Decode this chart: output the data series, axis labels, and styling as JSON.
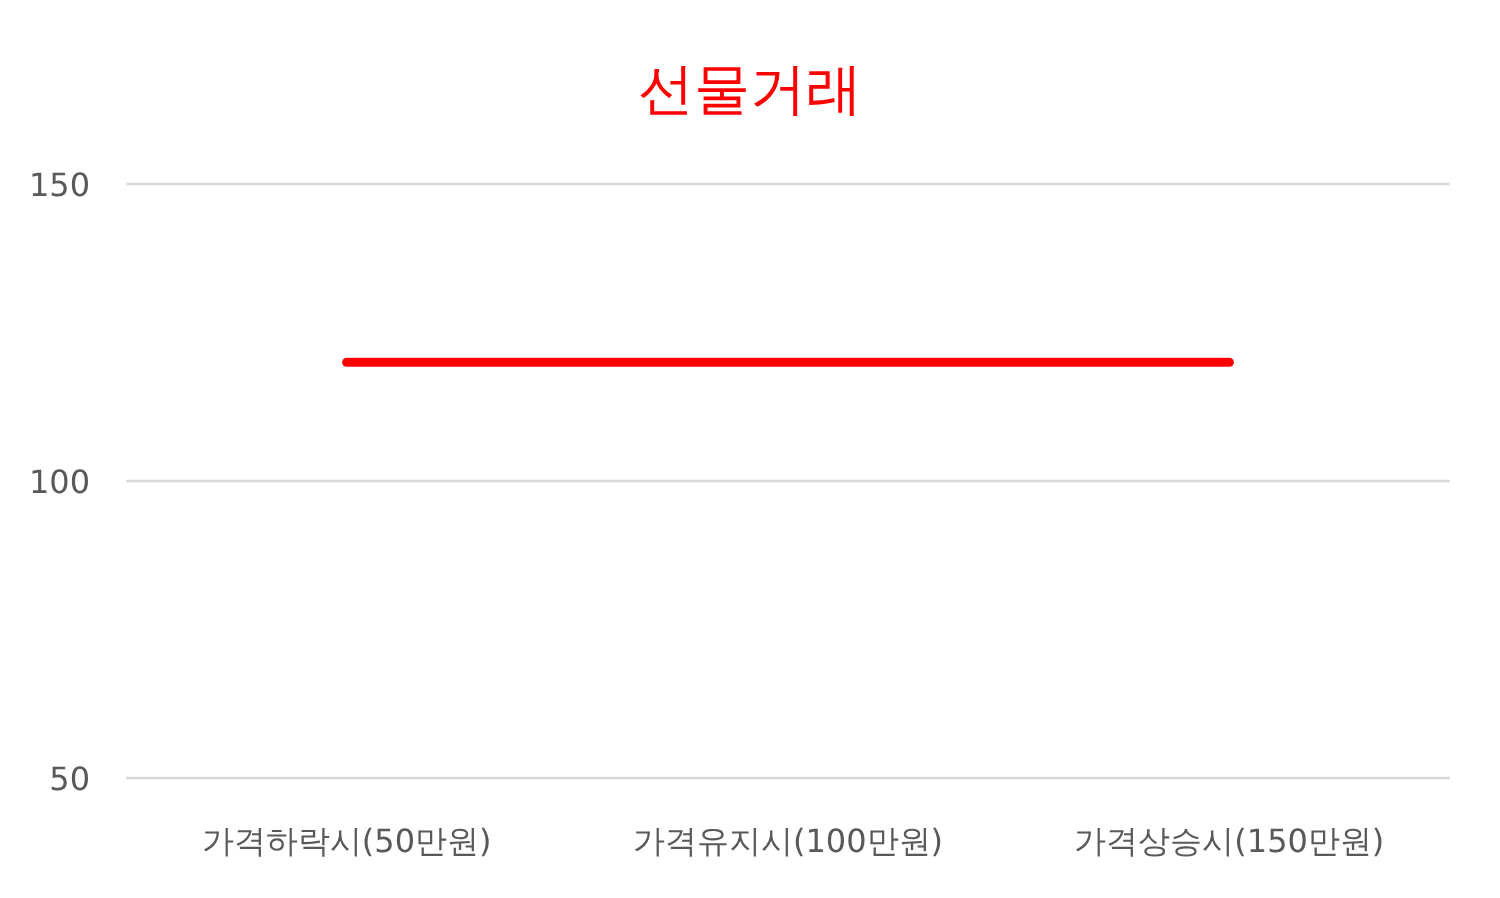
{
  "chart_data": {
    "type": "line",
    "title": "선물거래",
    "categories": [
      "가격하락시(50만원)",
      "가격유지시(100만원)",
      "가격상승시(150만원)"
    ],
    "series": [
      {
        "color": "#ff0000",
        "values": [
          120,
          120,
          120
        ]
      }
    ],
    "ylim": [
      50,
      150
    ],
    "yticks": [
      50,
      100,
      150
    ],
    "grid": "y",
    "marker": "none",
    "line_style": "solid"
  }
}
